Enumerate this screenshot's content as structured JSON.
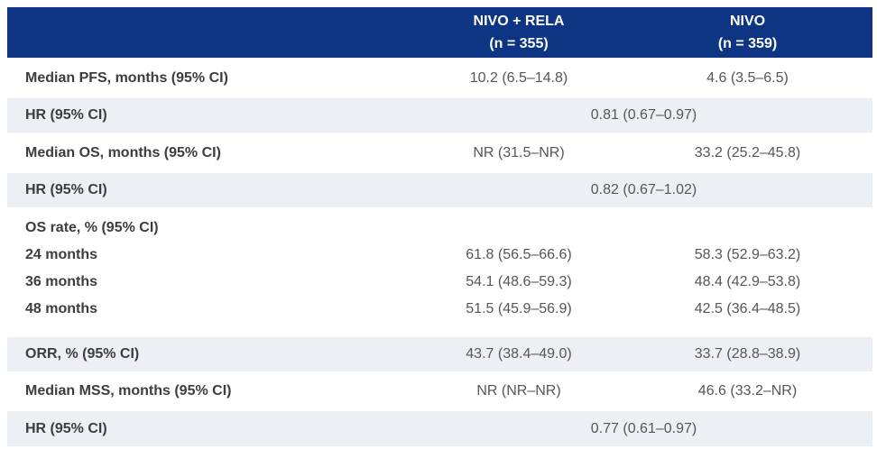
{
  "colors": {
    "header_bg": "#0d3583",
    "stripe_bg": "#ecf0f5",
    "label_text": "#3d3d3d",
    "value_text": "#55565a",
    "header_text": "#ffffff"
  },
  "chart_data": {
    "type": "table",
    "title": "",
    "columns": [
      {
        "label": "",
        "sub": ""
      },
      {
        "label": "NIVO + RELA",
        "sub": "(n = 355)"
      },
      {
        "label": "NIVO",
        "sub": "(n = 359)"
      }
    ],
    "rows": [
      {
        "label": "Median PFS, months (95% CI)",
        "nivo_rela": "10.2 (6.5–14.8)",
        "nivo": "4.6 (3.5–6.5)"
      },
      {
        "label": "HR (95% CI)",
        "span_value": "0.81 (0.67–0.97)"
      },
      {
        "label": "Median OS, months (95% CI)",
        "nivo_rela": "NR (31.5–NR)",
        "nivo": "33.2 (25.2–45.8)"
      },
      {
        "label": "HR (95% CI)",
        "span_value": "0.82 (0.67–1.02)"
      },
      {
        "label": "OS rate, % (95% CI)",
        "sub_rows": [
          {
            "label": "24 months",
            "nivo_rela": "61.8 (56.5–66.6)",
            "nivo": "58.3 (52.9–63.2)"
          },
          {
            "label": "36 months",
            "nivo_rela": "54.1 (48.6–59.3)",
            "nivo": "48.4 (42.9–53.8)"
          },
          {
            "label": "48 months",
            "nivo_rela": "51.5 (45.9–56.9)",
            "nivo": "42.5 (36.4–48.5)"
          }
        ]
      },
      {
        "label": "ORR, % (95% CI)",
        "nivo_rela": "43.7 (38.4–49.0)",
        "nivo": "33.7 (28.8–38.9)"
      },
      {
        "label": "Median MSS, months (95% CI)",
        "nivo_rela": "NR (NR–NR)",
        "nivo": "46.6 (33.2–NR)"
      },
      {
        "label": "HR (95% CI)",
        "span_value": "0.77 (0.61–0.97)"
      }
    ]
  }
}
